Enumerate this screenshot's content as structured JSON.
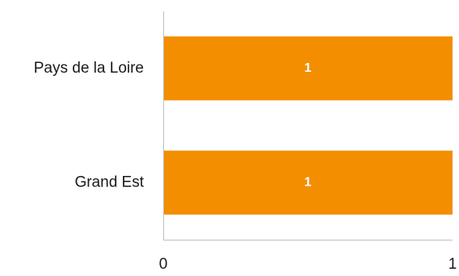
{
  "chart_data": {
    "type": "bar",
    "orientation": "horizontal",
    "categories": [
      "Pays de la Loire",
      "Grand Est"
    ],
    "values": [
      1,
      1
    ],
    "data_labels": [
      "1",
      "1"
    ],
    "xlim": [
      0,
      1
    ],
    "x_ticks": [
      0,
      1
    ],
    "x_tick_labels": [
      "0",
      "1"
    ],
    "bar_color": "#F28E00",
    "grid": false,
    "legend": "none"
  }
}
